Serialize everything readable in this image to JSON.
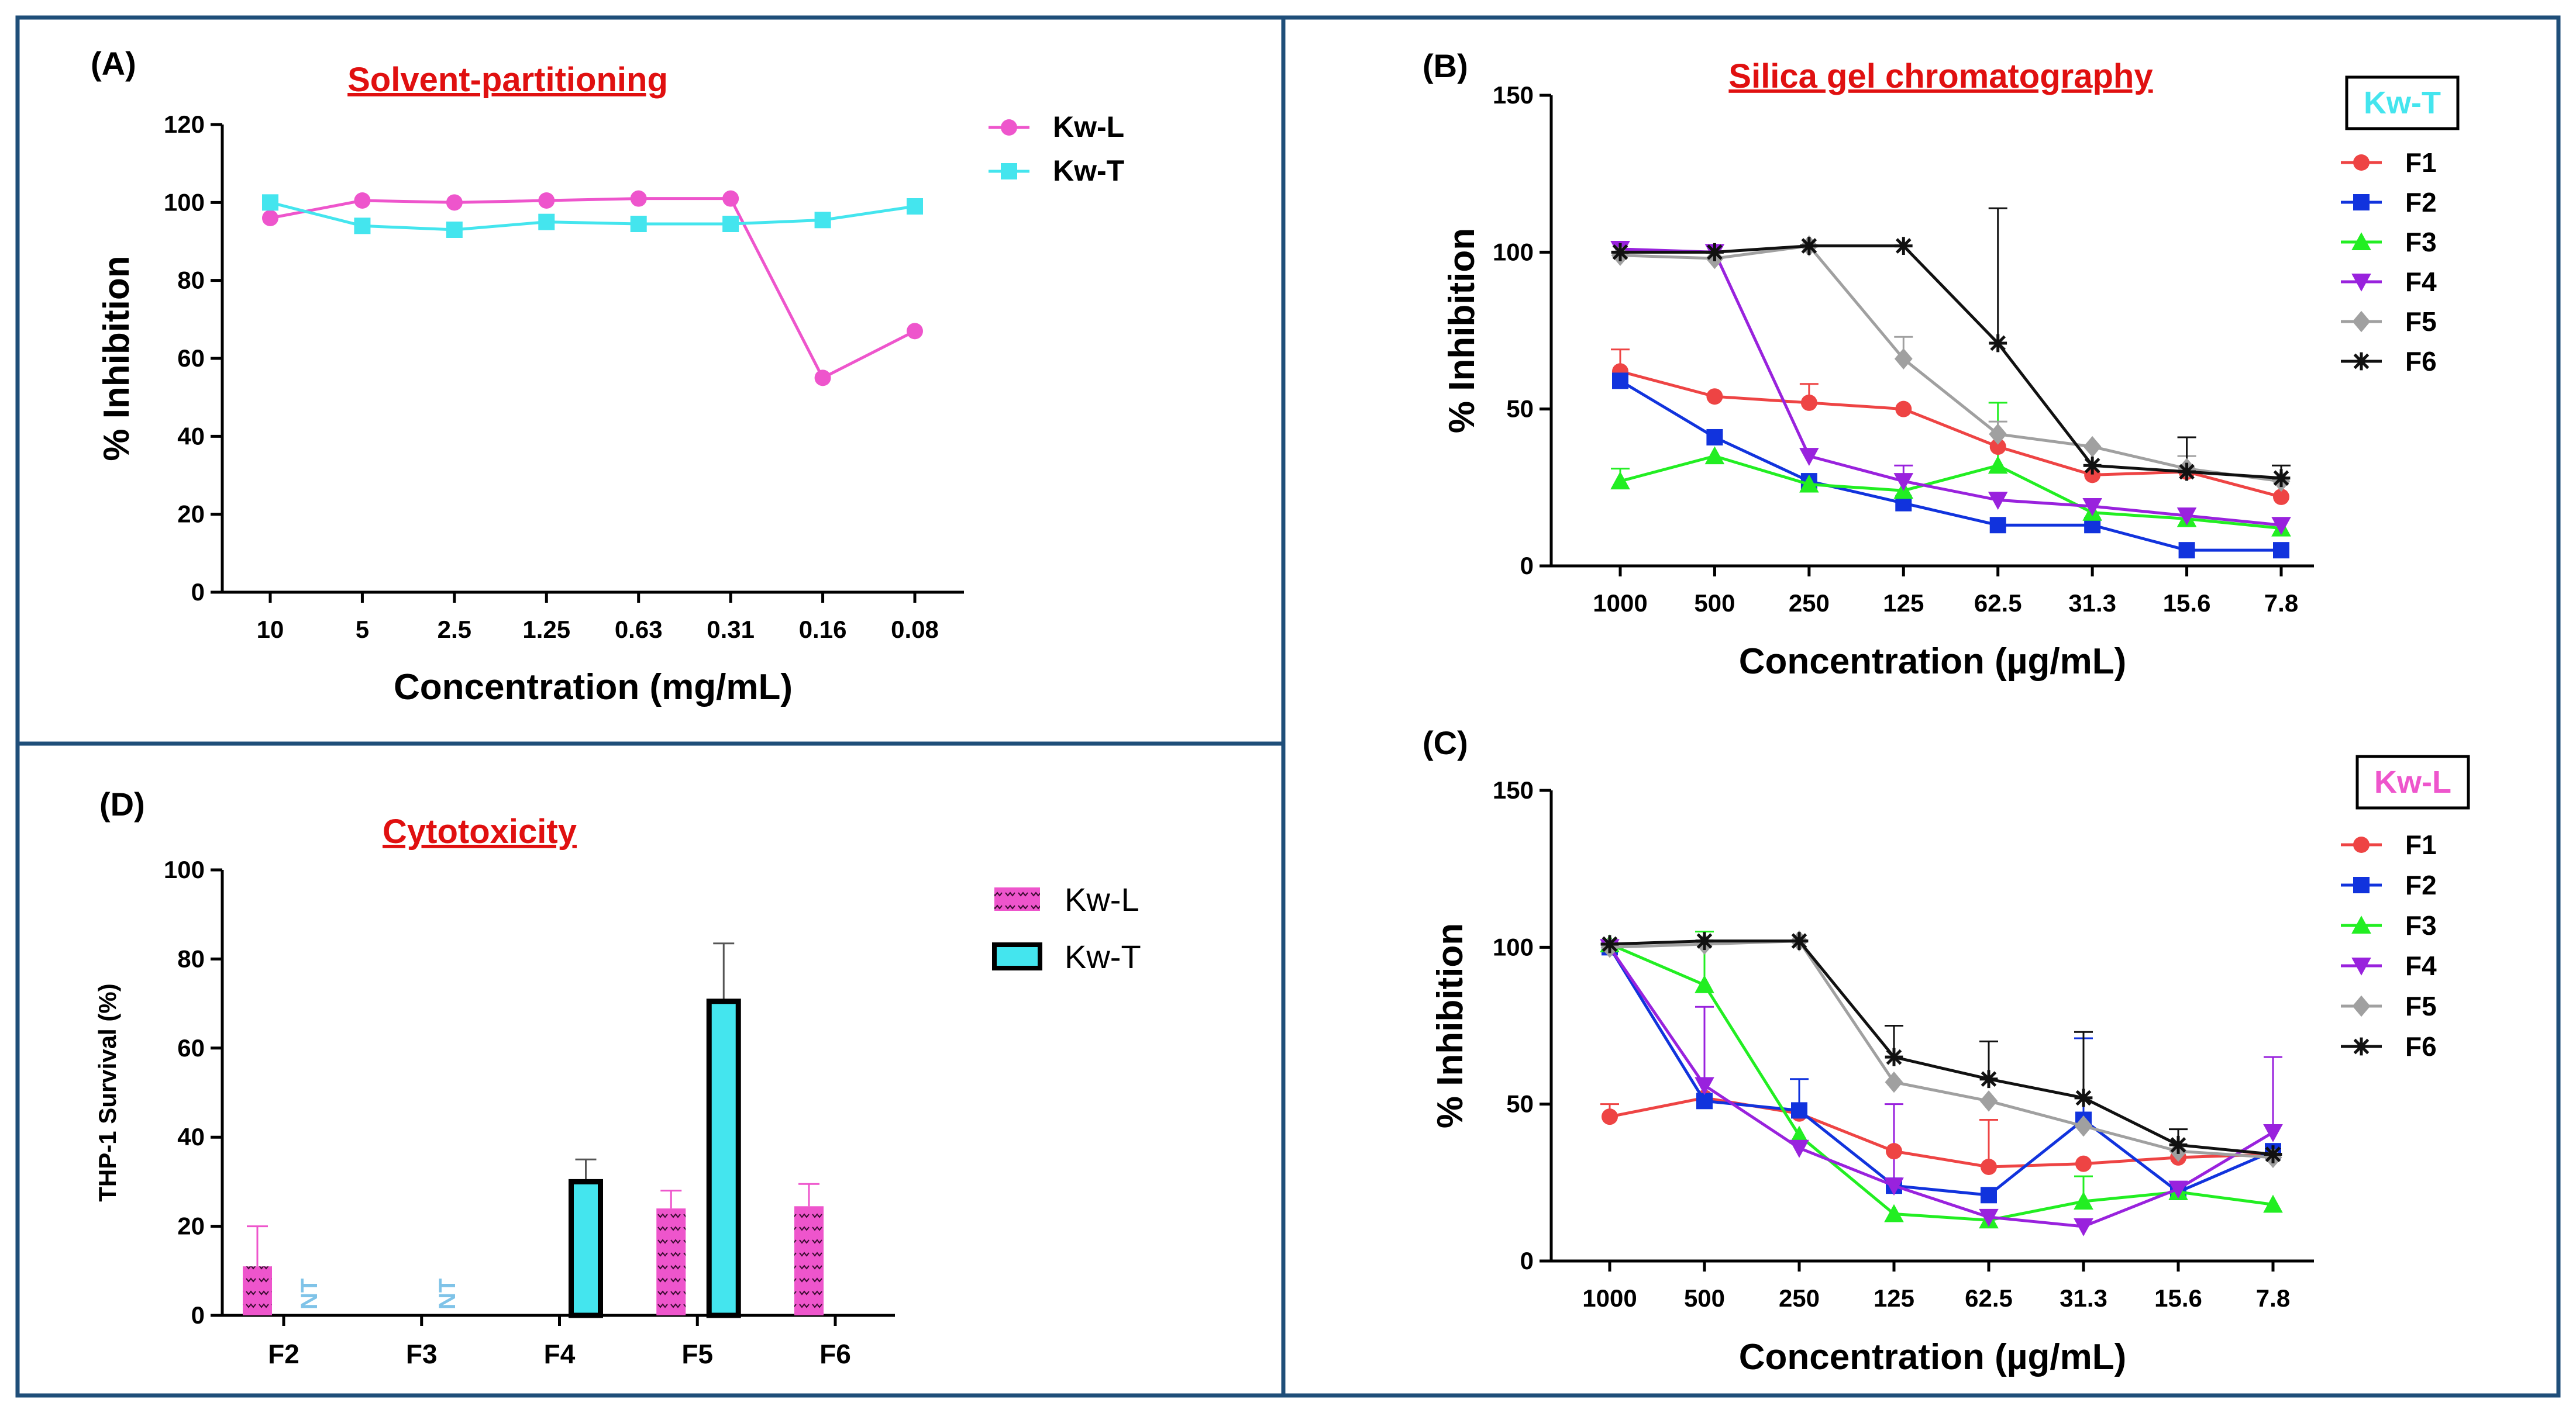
{
  "figure": {
    "colors": {
      "border": "#1F4E79",
      "axis": "#000000",
      "title": "#E01010",
      "kwl_pink": "#EE55CC",
      "kwt_cyan": "#44E5EE",
      "nt_blue": "#7FC3E8",
      "bar_pink": "#EE55CC",
      "bar_cyan": "#44E5EE"
    }
  },
  "chart_data": [
    {
      "id": "A",
      "type": "line",
      "panel_label": "(A)",
      "title": "Solvent-partitioning",
      "xlabel": "Concentration (mg/mL)",
      "ylabel": "% Inhibition",
      "categories": [
        "10",
        "5",
        "2.5",
        "1.25",
        "0.63",
        "0.31",
        "0.16",
        "0.08"
      ],
      "ylim": [
        0,
        120
      ],
      "yticks": [
        0,
        20,
        40,
        60,
        80,
        100,
        120
      ],
      "series": [
        {
          "name": "Kw-L",
          "color": "#EE55CC",
          "marker": "circle",
          "values": [
            96,
            100.5,
            100,
            100.5,
            101,
            101,
            55,
            67
          ]
        },
        {
          "name": "Kw-T",
          "color": "#44E5EE",
          "marker": "square",
          "values": [
            100,
            94,
            93,
            95,
            94.5,
            94.5,
            95.5,
            99
          ]
        }
      ]
    },
    {
      "id": "B",
      "type": "line",
      "panel_label": "(B)",
      "title": "Silica gel chromatography",
      "badge": "Kw-T",
      "badge_color": "#44E5EE",
      "xlabel": "Concentration (µg/mL)",
      "ylabel": "% Inhibition",
      "categories": [
        "1000",
        "500",
        "250",
        "125",
        "62.5",
        "31.3",
        "15.6",
        "7.8"
      ],
      "ylim": [
        0,
        150
      ],
      "yticks": [
        0,
        50,
        100,
        150
      ],
      "series": [
        {
          "name": "F1",
          "color": "#EE4444",
          "marker": "circle",
          "values": [
            62,
            54,
            52,
            50,
            38,
            29,
            30,
            22
          ],
          "err": [
            7,
            0,
            6,
            0,
            0,
            0,
            0,
            0
          ]
        },
        {
          "name": "F2",
          "color": "#1133DD",
          "marker": "square",
          "values": [
            59,
            41,
            27,
            20,
            13,
            13,
            5,
            5
          ],
          "err": [
            0,
            0,
            0,
            0,
            0,
            0,
            0,
            0
          ]
        },
        {
          "name": "F3",
          "color": "#22EE22",
          "marker": "triangle-up",
          "values": [
            27,
            35,
            26,
            24,
            32,
            17,
            15,
            12
          ],
          "err": [
            4,
            0,
            0,
            0,
            20,
            0,
            0,
            0
          ]
        },
        {
          "name": "F4",
          "color": "#9922DD",
          "marker": "triangle-down",
          "values": [
            101,
            100,
            35,
            27,
            21,
            19,
            16,
            13
          ],
          "err": [
            0,
            0,
            0,
            5,
            0,
            0,
            0,
            0
          ]
        },
        {
          "name": "F5",
          "color": "#A0A0A0",
          "marker": "diamond",
          "values": [
            99,
            98,
            102,
            66,
            42,
            38,
            31,
            27
          ],
          "err": [
            0,
            0,
            0,
            7,
            4,
            0,
            4,
            0
          ]
        },
        {
          "name": "F6",
          "color": "#111111",
          "marker": "star",
          "values": [
            100,
            100,
            102,
            102,
            71,
            32,
            30,
            28
          ],
          "err": [
            0,
            0,
            0,
            0,
            43,
            0,
            11,
            4
          ]
        }
      ]
    },
    {
      "id": "C",
      "type": "line",
      "panel_label": "(C)",
      "badge": "Kw-L",
      "badge_color": "#EE55CC",
      "xlabel": "Concentration (µg/mL)",
      "ylabel": "% Inhibition",
      "categories": [
        "1000",
        "500",
        "250",
        "125",
        "62.5",
        "31.3",
        "15.6",
        "7.8"
      ],
      "ylim": [
        0,
        150
      ],
      "yticks": [
        0,
        50,
        100,
        150
      ],
      "series": [
        {
          "name": "F1",
          "color": "#EE4444",
          "marker": "circle",
          "values": [
            46,
            52,
            47,
            35,
            30,
            31,
            33,
            34
          ],
          "err": [
            4,
            0,
            0,
            0,
            15,
            0,
            0,
            0
          ]
        },
        {
          "name": "F2",
          "color": "#1133DD",
          "marker": "square",
          "values": [
            100,
            51,
            48,
            24,
            21,
            45,
            22,
            35
          ],
          "err": [
            0,
            0,
            10,
            0,
            0,
            26,
            0,
            0
          ]
        },
        {
          "name": "F3",
          "color": "#22EE22",
          "marker": "triangle-up",
          "values": [
            101,
            88,
            40,
            15,
            13,
            19,
            22,
            18
          ],
          "err": [
            0,
            17,
            0,
            0,
            0,
            8,
            0,
            0
          ]
        },
        {
          "name": "F4",
          "color": "#9922DD",
          "marker": "triangle-down",
          "values": [
            100,
            56,
            36,
            24,
            14,
            11,
            23,
            41
          ],
          "err": [
            0,
            25,
            0,
            26,
            0,
            0,
            0,
            24
          ]
        },
        {
          "name": "F5",
          "color": "#A0A0A0",
          "marker": "diamond",
          "values": [
            100,
            101,
            102,
            57,
            51,
            43,
            35,
            33
          ],
          "err": [
            0,
            0,
            0,
            0,
            0,
            0,
            0,
            0
          ]
        },
        {
          "name": "F6",
          "color": "#111111",
          "marker": "star",
          "values": [
            101,
            102,
            102,
            65,
            58,
            52,
            37,
            34
          ],
          "err": [
            0,
            0,
            0,
            10,
            12,
            21,
            5,
            0
          ]
        }
      ]
    },
    {
      "id": "D",
      "type": "bar",
      "panel_label": "(D)",
      "title": "Cytotoxicity",
      "ylabel": "THP-1 Survival (%)",
      "categories": [
        "F2",
        "F3",
        "F4",
        "F5",
        "F6"
      ],
      "ylim": [
        0,
        100
      ],
      "yticks": [
        0,
        20,
        40,
        60,
        80,
        100
      ],
      "series": [
        {
          "name": "Kw-L",
          "color": "#EE55CC",
          "values": [
            11,
            null,
            null,
            24,
            24.5
          ],
          "err": [
            9,
            0,
            0,
            4,
            5
          ]
        },
        {
          "name": "Kw-T",
          "color": "#44E5EE",
          "values": [
            null,
            null,
            30,
            70.5,
            null
          ],
          "err": [
            0,
            0,
            5,
            13,
            0
          ]
        }
      ],
      "annotations": [
        {
          "category": "F2",
          "series": "Kw-T",
          "text": "NT"
        },
        {
          "category": "F3",
          "series": "Kw-T",
          "text": "NT"
        }
      ]
    }
  ]
}
